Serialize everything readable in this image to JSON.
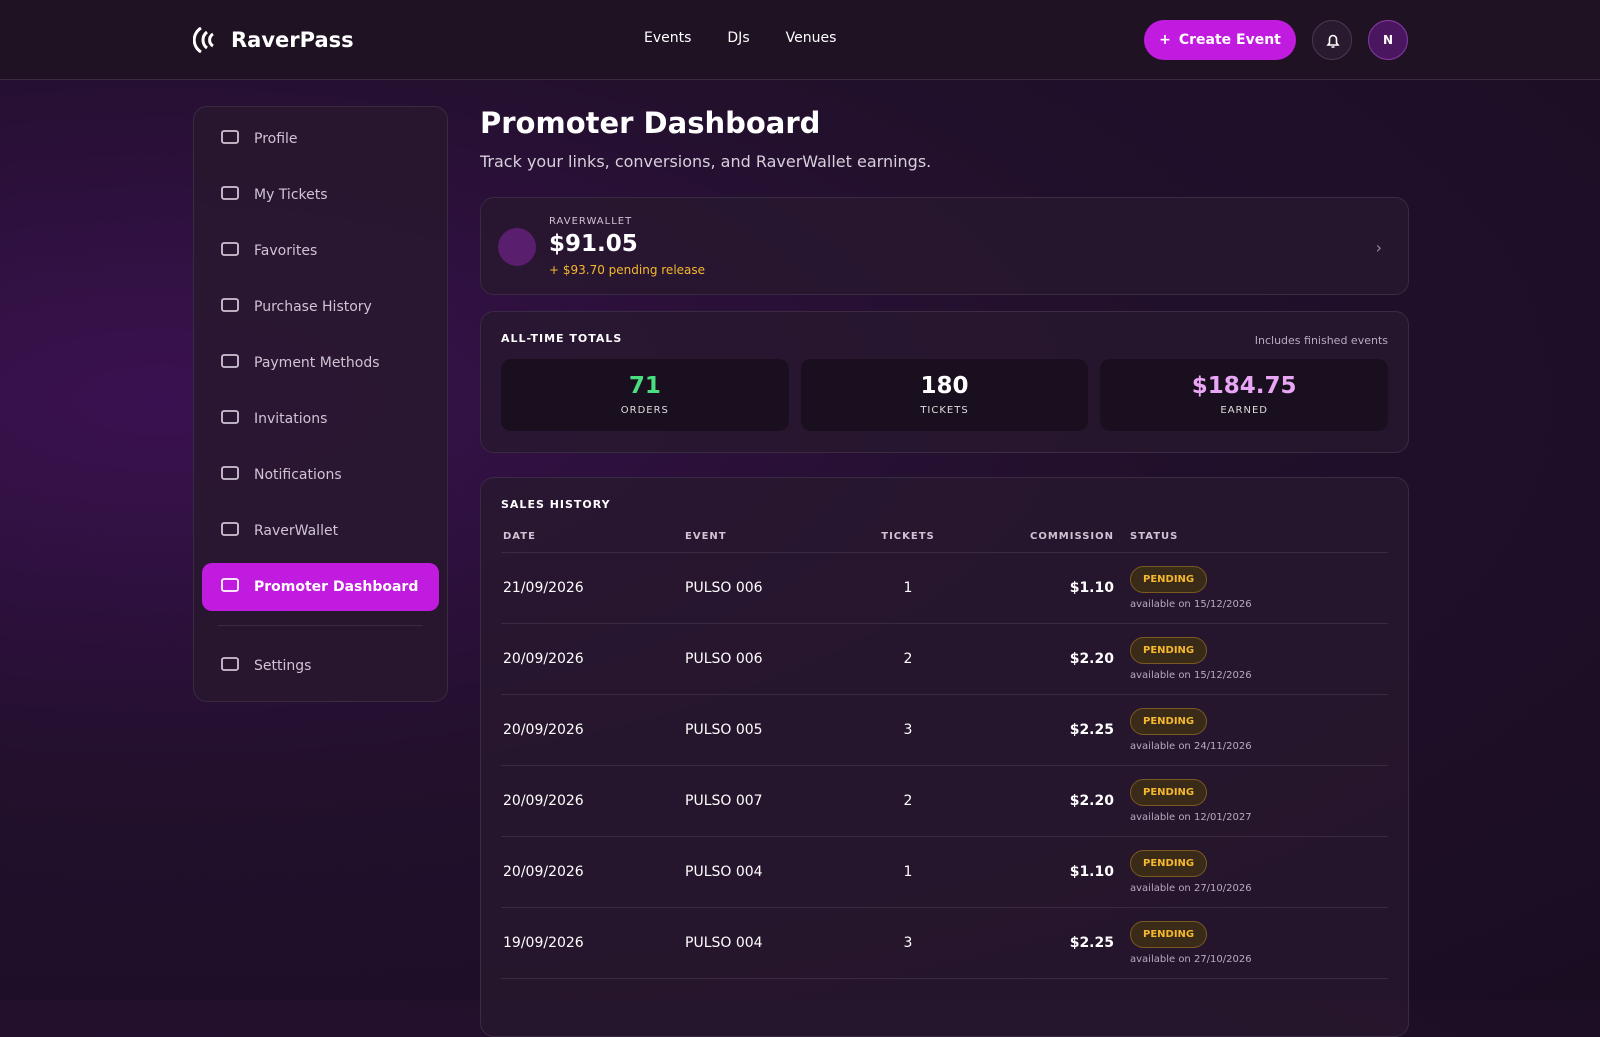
{
  "header": {
    "brand": "RaverPass",
    "nav": [
      "Events",
      "DJs",
      "Venues"
    ],
    "create": "Create Event",
    "avatar": "N"
  },
  "sidebar": {
    "items": [
      "Profile",
      "My Tickets",
      "Favorites",
      "Purchase History",
      "Payment Methods",
      "Invitations",
      "Notifications",
      "RaverWallet",
      "Promoter Dashboard"
    ],
    "active": 8,
    "settings": "Settings"
  },
  "page": {
    "title": "Promoter Dashboard",
    "subtitle": "Track your links, conversions, and RaverWallet earnings."
  },
  "wallet": {
    "label": "RAVERWALLET",
    "balance": "$91.05",
    "pending": "+ $93.70 pending release"
  },
  "totals": {
    "title": "ALL-TIME TOTALS",
    "note": "Includes finished events",
    "stats": [
      {
        "value": "71",
        "label": "ORDERS",
        "color": "#4ade80"
      },
      {
        "value": "180",
        "label": "TICKETS",
        "color": "#ffffff"
      },
      {
        "value": "$184.75",
        "label": "EARNED",
        "color": "#e9a6f5"
      }
    ]
  },
  "sales": {
    "title": "SALES HISTORY",
    "columns": [
      "DATE",
      "EVENT",
      "TICKETS",
      "COMMISSION",
      "STATUS"
    ],
    "rows": [
      [
        "21/09/2026",
        "PULSO 006",
        "1",
        "$1.10",
        "PENDING",
        "available on 15/12/2026"
      ],
      [
        "20/09/2026",
        "PULSO 006",
        "2",
        "$2.20",
        "PENDING",
        "available on 15/12/2026"
      ],
      [
        "20/09/2026",
        "PULSO 005",
        "3",
        "$2.25",
        "PENDING",
        "available on 24/11/2026"
      ],
      [
        "20/09/2026",
        "PULSO 007",
        "2",
        "$2.20",
        "PENDING",
        "available on 12/01/2027"
      ],
      [
        "20/09/2026",
        "PULSO 004",
        "1",
        "$1.10",
        "PENDING",
        "available on 27/10/2026"
      ],
      [
        "19/09/2026",
        "PULSO 004",
        "3",
        "$2.25",
        "PENDING",
        "available on 27/10/2026"
      ]
    ]
  }
}
